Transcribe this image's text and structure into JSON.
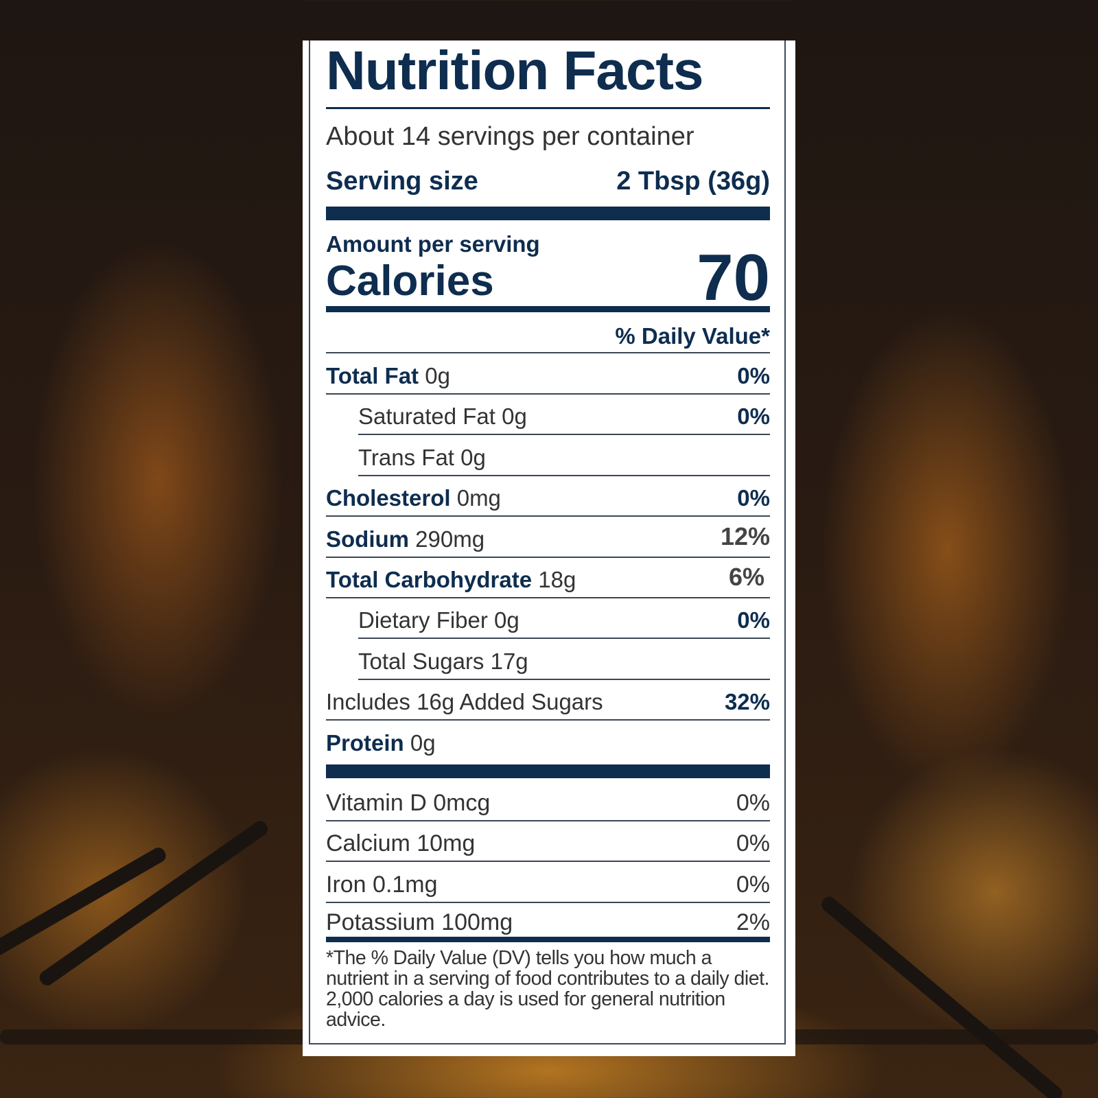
{
  "label": {
    "title": "Nutrition Facts",
    "servings_per_container": "About 14 servings per container",
    "serving_size_label": "Serving size",
    "serving_size_value": "2 Tbsp (36g)",
    "amount_per_serving": "Amount per serving",
    "calories_label": "Calories",
    "calories_value": "70",
    "daily_value_header": "% Daily Value*",
    "nutrients": [
      {
        "name": "Total Fat",
        "amount": "0g",
        "dv": "0%"
      },
      {
        "name": "Saturated Fat 0g",
        "amount": "",
        "dv": "0%"
      },
      {
        "name": "Trans Fat 0g",
        "amount": "",
        "dv": ""
      },
      {
        "name": "Cholesterol",
        "amount": "0mg",
        "dv": "0%"
      },
      {
        "name": "Sodium",
        "amount": "290mg",
        "dv": "12%"
      },
      {
        "name": "Total Carbohydrate",
        "amount": "18g",
        "dv": "6%"
      },
      {
        "name": "Dietary Fiber 0g",
        "amount": "",
        "dv": "0%"
      },
      {
        "name": "Total Sugars 17g",
        "amount": "",
        "dv": ""
      },
      {
        "name": "Includes 16g Added Sugars",
        "amount": "",
        "dv": "32%"
      },
      {
        "name": "Protein",
        "amount": "0g",
        "dv": ""
      }
    ],
    "vitamins": [
      {
        "name": "Vitamin D 0mcg",
        "dv": "0%"
      },
      {
        "name": "Calcium 10mg",
        "dv": "0%"
      },
      {
        "name": "Iron 0.1mg",
        "dv": "0%"
      },
      {
        "name": "Potassium 100mg",
        "dv": "2%"
      }
    ],
    "footnote": "*The % Daily Value (DV) tells you how much a nutrient in a serving of food contributes to a daily diet. 2,000 calories a day is used for general nutrition advice."
  },
  "colors": {
    "navy": "#0e2d4f",
    "text": "#333333"
  }
}
